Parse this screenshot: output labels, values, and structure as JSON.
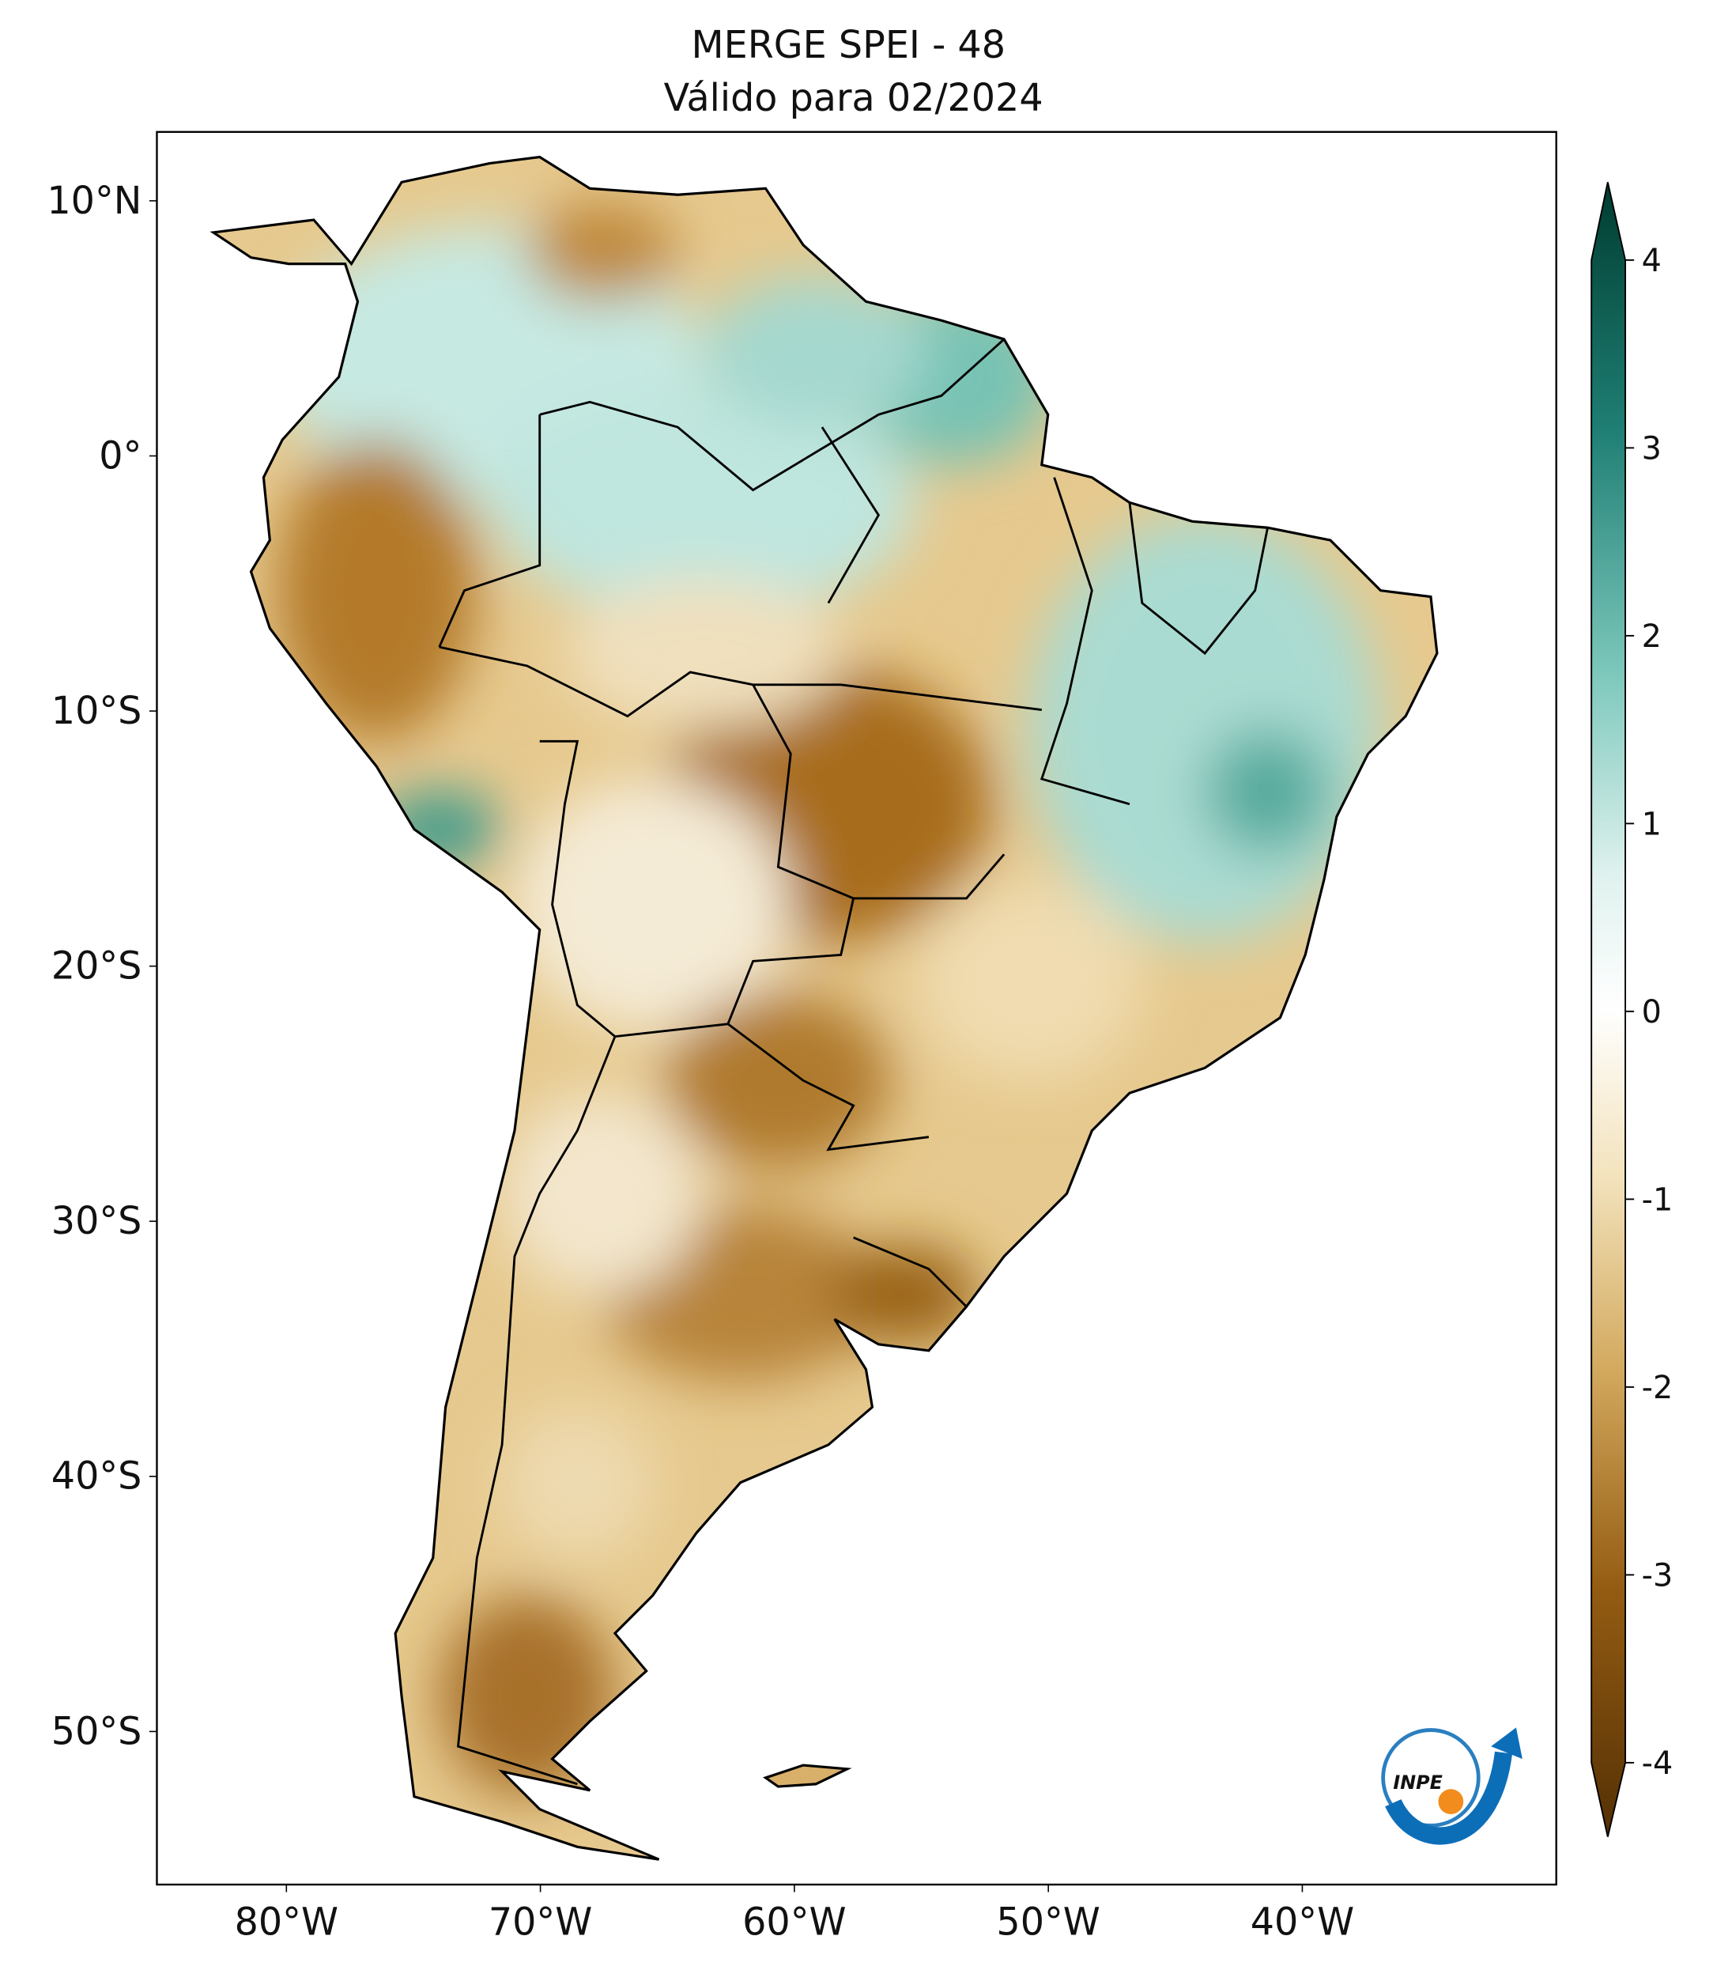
{
  "header": {
    "title": "MERGE   SPEI - 48",
    "subtitle": "Válido para 02/2024"
  },
  "map": {
    "xlim": [
      -85.1,
      -30
    ],
    "ylim": [
      -56,
      12.7
    ],
    "xticks": [
      {
        "value": -80,
        "label": "80°W"
      },
      {
        "value": -70,
        "label": "70°W"
      },
      {
        "value": -60,
        "label": "60°W"
      },
      {
        "value": -50,
        "label": "50°W"
      },
      {
        "value": -40,
        "label": "40°W"
      }
    ],
    "yticks": [
      {
        "value": 10,
        "label": "10°N"
      },
      {
        "value": 0,
        "label": "0°"
      },
      {
        "value": -10,
        "label": "10°S"
      },
      {
        "value": -20,
        "label": "20°S"
      },
      {
        "value": -30,
        "label": "30°S"
      },
      {
        "value": -40,
        "label": "40°S"
      },
      {
        "value": -50,
        "label": "50°S"
      }
    ]
  },
  "colorbar": {
    "lim": [
      -4,
      4
    ],
    "ticks": [
      4,
      3,
      2,
      1,
      0,
      -1,
      -2,
      -3,
      -4
    ]
  },
  "logo": "INPE"
}
